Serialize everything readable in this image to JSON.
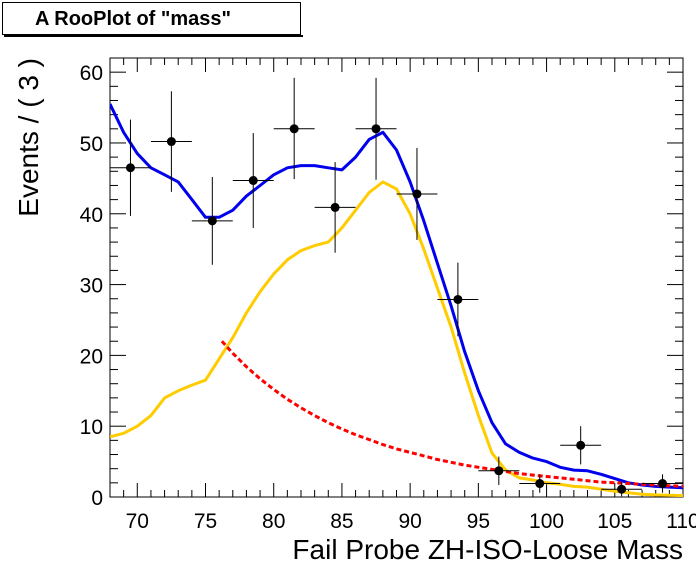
{
  "title": "A RooPlot of \"mass\"",
  "chart_data": {
    "type": "scatter",
    "title": "A RooPlot of \"mass\"",
    "xlabel": "Fail   Probe ZH-ISO-Loose      Mass",
    "ylabel": "Events / ( 3 )",
    "xlim": [
      68,
      110
    ],
    "ylim": [
      0,
      62
    ],
    "x_ticks": [
      70,
      75,
      80,
      85,
      90,
      95,
      100,
      105,
      110
    ],
    "y_ticks": [
      0,
      10,
      20,
      30,
      40,
      50,
      60
    ],
    "grid": false,
    "legend": "none",
    "data_points": {
      "x": [
        69.5,
        72.5,
        75.5,
        78.5,
        81.5,
        84.5,
        87.5,
        90.5,
        93.5,
        96.5,
        99.5,
        102.5,
        105.5,
        108.5
      ],
      "y": [
        46.5,
        50.2,
        39.0,
        44.7,
        52.0,
        40.9,
        52.0,
        42.8,
        27.9,
        3.7,
        1.9,
        7.3,
        1.1,
        1.9
      ],
      "err_low": [
        6.8,
        7.1,
        6.2,
        6.7,
        7.1,
        6.4,
        7.2,
        6.5,
        5.2,
        2.0,
        1.3,
        2.7,
        1.0,
        1.3
      ],
      "err_high": [
        6.8,
        7.1,
        6.2,
        6.7,
        7.2,
        6.4,
        7.2,
        6.5,
        5.2,
        2.0,
        1.3,
        2.7,
        1.0,
        1.3
      ],
      "x_err": 1.5
    },
    "series": [
      {
        "color": "#0000ee",
        "style": "solid",
        "x": [
          68,
          69,
          70,
          71,
          72,
          73,
          74,
          75,
          76,
          77,
          78,
          79,
          80,
          81,
          82,
          83,
          84,
          85,
          86,
          87,
          88,
          89,
          90,
          91,
          92,
          93,
          94,
          95,
          96,
          97,
          98,
          99,
          100,
          101,
          102,
          103,
          104,
          105,
          106,
          107,
          108,
          109,
          110
        ],
        "y": [
          55.5,
          51.5,
          48.5,
          46.5,
          45.5,
          44.5,
          42.0,
          39.5,
          39.5,
          40.5,
          42.5,
          44.0,
          45.5,
          46.5,
          46.8,
          46.8,
          46.5,
          46.2,
          48.0,
          50.5,
          51.5,
          49.0,
          44.5,
          39.0,
          33.0,
          27.0,
          20.5,
          15.0,
          10.5,
          7.5,
          6.3,
          5.5,
          5.0,
          4.2,
          3.8,
          3.7,
          3.2,
          2.6,
          2.0,
          1.7,
          1.5,
          1.4,
          1.3
        ]
      },
      {
        "color": "#ffcc00",
        "style": "solid",
        "x": [
          68,
          69,
          70,
          71,
          72,
          73,
          74,
          75,
          76,
          77,
          78,
          79,
          80,
          81,
          82,
          83,
          84,
          85,
          86,
          87,
          88,
          89,
          90,
          91,
          92,
          93,
          94,
          95,
          96,
          97,
          98,
          99,
          100,
          101,
          102,
          103,
          104,
          105,
          106,
          107,
          108,
          109,
          110
        ],
        "y": [
          8.5,
          9.0,
          10.0,
          11.5,
          14.0,
          15.0,
          15.8,
          16.5,
          19.5,
          22.5,
          26.0,
          29.0,
          31.5,
          33.5,
          34.8,
          35.5,
          36.0,
          38.0,
          40.5,
          43.0,
          44.5,
          43.5,
          40.0,
          35.0,
          29.5,
          24.0,
          17.5,
          11.5,
          6.2,
          3.8,
          2.7,
          2.4,
          2.0,
          1.8,
          1.5,
          1.4,
          1.1,
          0.8,
          0.6,
          0.4,
          0.3,
          0.25,
          0.2
        ]
      },
      {
        "color": "#ff0000",
        "style": "dashed",
        "x": [
          76.2,
          77,
          78,
          79,
          80,
          81,
          82,
          83,
          84,
          85,
          86,
          87,
          88,
          89,
          90,
          91,
          92,
          93,
          94,
          95,
          96,
          97,
          98,
          99,
          100,
          101,
          102,
          103,
          104,
          105,
          106,
          107,
          108,
          109,
          110
        ],
        "y": [
          22.0,
          20.3,
          18.4,
          16.7,
          15.2,
          13.8,
          12.6,
          11.5,
          10.5,
          9.6,
          8.8,
          8.1,
          7.4,
          6.8,
          6.3,
          5.8,
          5.3,
          4.9,
          4.5,
          4.2,
          3.9,
          3.6,
          3.3,
          3.1,
          2.9,
          2.7,
          2.5,
          2.3,
          2.1,
          2.0,
          1.9,
          1.8,
          1.7,
          1.6,
          1.5
        ]
      }
    ]
  }
}
